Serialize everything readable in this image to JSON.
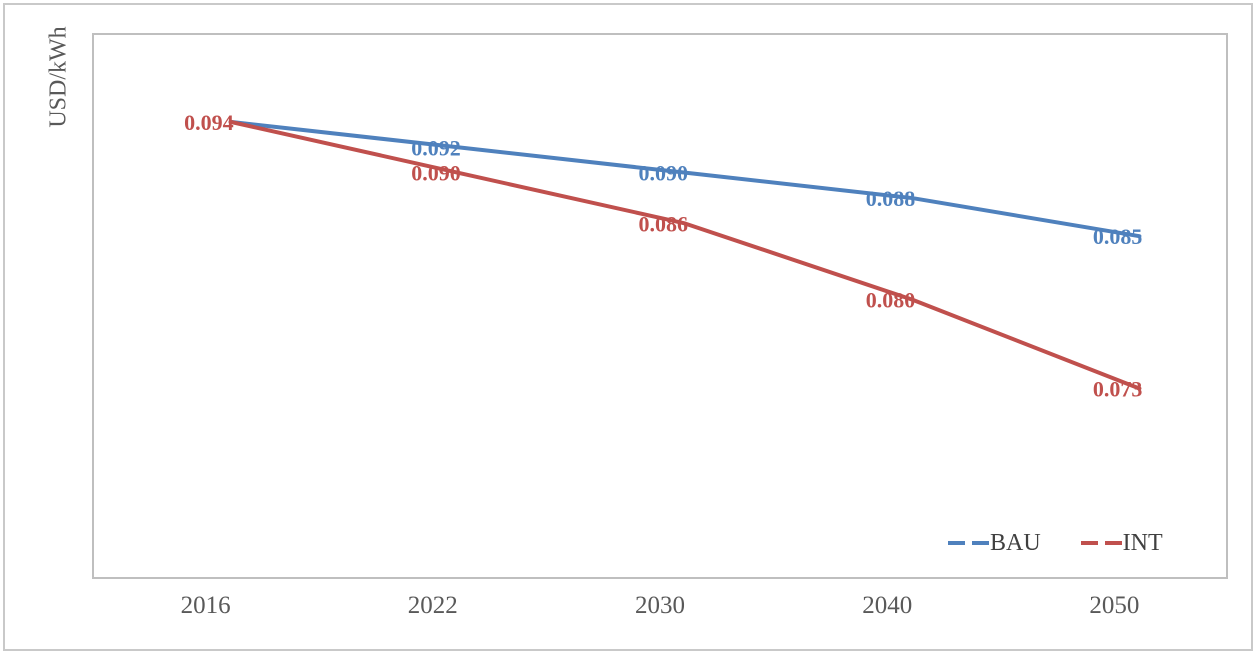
{
  "window": {
    "background": "#ffffff",
    "outer_border_color": "#c9c9c9",
    "plot_border_color": "#bfbfbf",
    "axis_text_color": "#595959"
  },
  "chart_data": {
    "type": "line",
    "title": "",
    "xlabel": "",
    "ylabel": "USD/kWh",
    "categories": [
      "2016",
      "2022",
      "2030",
      "2040",
      "2050"
    ],
    "series": [
      {
        "name": "BAU",
        "color": "#4F81BD",
        "values": [
          0.094,
          0.092,
          0.09,
          0.088,
          0.085
        ],
        "data_labels": [
          "",
          "0.092",
          "0.090",
          "0.088",
          "0.085"
        ]
      },
      {
        "name": "INT",
        "color": "#C0504D",
        "values": [
          0.094,
          0.09,
          0.086,
          0.08,
          0.073
        ],
        "data_labels": [
          "0.094",
          "0.090",
          "0.086",
          "0.080",
          "0.073"
        ]
      }
    ],
    "ylim": [
      0.058,
      0.101
    ],
    "grid": false,
    "markers": false,
    "line_width": 4,
    "legend_position": "bottom-right-inside",
    "legend_key_style": "dashed"
  }
}
